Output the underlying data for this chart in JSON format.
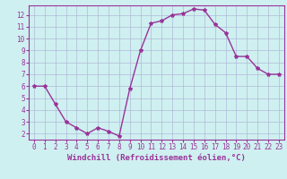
{
  "x": [
    0,
    1,
    2,
    3,
    4,
    5,
    6,
    7,
    8,
    9,
    10,
    11,
    12,
    13,
    14,
    15,
    16,
    17,
    18,
    19,
    20,
    21,
    22,
    23
  ],
  "y": [
    6.0,
    6.0,
    4.5,
    3.0,
    2.5,
    2.0,
    2.5,
    2.2,
    1.8,
    5.8,
    9.0,
    11.3,
    11.5,
    12.0,
    12.1,
    12.5,
    12.4,
    11.2,
    10.5,
    8.5,
    8.5,
    7.5,
    7.0,
    7.0
  ],
  "line_color": "#993399",
  "marker": "*",
  "marker_size": 3,
  "bg_color": "#cff0f0",
  "grid_color": "#b0b8d8",
  "xlabel": "Windchill (Refroidissement éolien,°C)",
  "ylim": [
    1.5,
    12.8
  ],
  "xlim": [
    -0.5,
    23.5
  ],
  "yticks": [
    2,
    3,
    4,
    5,
    6,
    7,
    8,
    9,
    10,
    11,
    12
  ],
  "xticks": [
    0,
    1,
    2,
    3,
    4,
    5,
    6,
    7,
    8,
    9,
    10,
    11,
    12,
    13,
    14,
    15,
    16,
    17,
    18,
    19,
    20,
    21,
    22,
    23
  ],
  "tick_fontsize": 5.5,
  "xlabel_fontsize": 6.5,
  "line_width": 1.0
}
